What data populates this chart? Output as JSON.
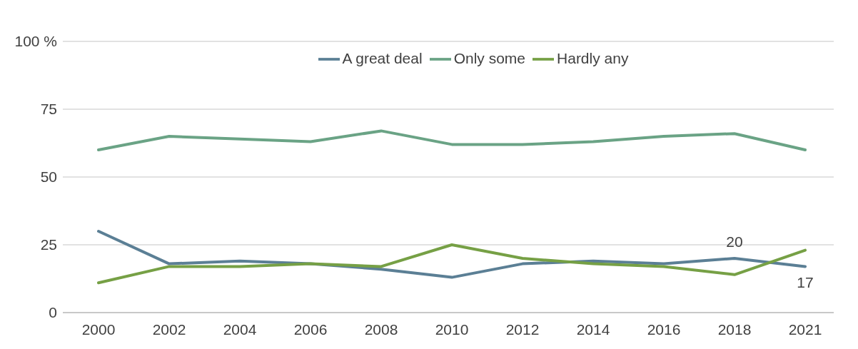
{
  "chart_data": {
    "type": "line",
    "categories": [
      "2000",
      "2002",
      "2004",
      "2006",
      "2008",
      "2010",
      "2012",
      "2014",
      "2016",
      "2018",
      "2021"
    ],
    "series": [
      {
        "name": "A great deal",
        "color": "#5b7f95",
        "values": [
          30,
          18,
          19,
          18,
          16,
          13,
          18,
          19,
          18,
          20,
          17
        ],
        "value_labels": [
          null,
          null,
          null,
          null,
          null,
          null,
          null,
          null,
          null,
          "20",
          "17"
        ]
      },
      {
        "name": "Only some",
        "color": "#6aa385",
        "values": [
          60,
          65,
          64,
          63,
          67,
          62,
          62,
          63,
          65,
          66,
          60
        ]
      },
      {
        "name": "Hardly any",
        "color": "#76a045",
        "values": [
          11,
          17,
          17,
          18,
          17,
          25,
          20,
          18,
          17,
          14,
          23
        ]
      }
    ],
    "ylim": [
      0,
      100
    ],
    "yticks": [
      0,
      25,
      50,
      75,
      {
        "value": 100,
        "label": "100 %"
      }
    ],
    "grid": "y",
    "legend": "top"
  }
}
